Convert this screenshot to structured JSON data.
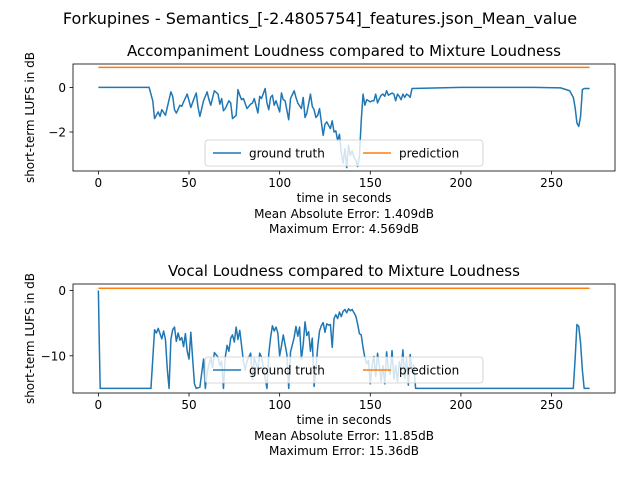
{
  "figure": {
    "suptitle": "Forkupines - Semantics_[-2.4805754]_features.json_Mean_value"
  },
  "colors": {
    "ground_truth": "#1f77b4",
    "prediction": "#ff7f0e"
  },
  "chart_data": [
    {
      "type": "line",
      "title": "Accompaniment Loudness compared to Mixture Loudness",
      "xlabel": "time in seconds",
      "ylabel": "short-term LUFS in dB",
      "xlim": [
        -14,
        285
      ],
      "ylim": [
        -3.75,
        1.05
      ],
      "xticks": [
        0,
        50,
        100,
        150,
        200,
        250
      ],
      "yticks": [
        -2,
        0
      ],
      "legend": {
        "placement": "lower center",
        "columns": 2
      },
      "grid": false,
      "stats": [
        "Mean Absolute Error: 1.409dB",
        "Maximum Error: 4.569dB"
      ],
      "series": [
        {
          "name": "ground truth",
          "color": "#1f77b4",
          "x": [
            0,
            28,
            30,
            31,
            33,
            34,
            35,
            37,
            38,
            40,
            41,
            42,
            43,
            45,
            46,
            47,
            49,
            51,
            53,
            54,
            55,
            56,
            58,
            60,
            61,
            62,
            64,
            66,
            67,
            68,
            69,
            70,
            72,
            73,
            74,
            76,
            77,
            78,
            79,
            80,
            82,
            84,
            85,
            86,
            88,
            89,
            90,
            92,
            93,
            94,
            95,
            96,
            97,
            98,
            100,
            101,
            102,
            103,
            105,
            106,
            108,
            109,
            110,
            112,
            113,
            114,
            115,
            117,
            118,
            119,
            120,
            121,
            122,
            124,
            125,
            126,
            127,
            128,
            129,
            130,
            131,
            132,
            133,
            134,
            135,
            136,
            137,
            138,
            139,
            140,
            141,
            142,
            143,
            144,
            145,
            146,
            147,
            148,
            150,
            151,
            152,
            153,
            154,
            155,
            156,
            157,
            158,
            159,
            160,
            161,
            162,
            163,
            164,
            165,
            166,
            167,
            168,
            169,
            170,
            171,
            172,
            173,
            200,
            240,
            255,
            260,
            262,
            263,
            264,
            265,
            266,
            267,
            268,
            270,
            271
          ],
          "values": [
            0,
            0,
            -0.6,
            -1.4,
            -1.1,
            -1.3,
            -1.0,
            -1.25,
            -0.9,
            -0.2,
            -0.4,
            -1.0,
            -1.15,
            -0.8,
            -0.85,
            -0.65,
            -0.3,
            -0.9,
            -0.45,
            -0.25,
            -0.9,
            -1.3,
            -0.6,
            -0.2,
            -0.55,
            -0.8,
            -0.15,
            -0.3,
            -0.75,
            -0.5,
            -1.05,
            -0.95,
            -0.6,
            -0.7,
            -1.4,
            -1.25,
            -0.1,
            -0.35,
            -0.55,
            -0.5,
            -0.95,
            -0.75,
            -0.7,
            -0.5,
            -1.15,
            -0.4,
            -0.5,
            -0.05,
            -0.7,
            -1.0,
            -0.45,
            -0.35,
            -0.8,
            -0.6,
            -1.1,
            -0.25,
            -0.55,
            -0.6,
            -1.45,
            -0.5,
            -0.15,
            -0.45,
            -0.7,
            -0.95,
            -0.45,
            -1.35,
            -1.15,
            -0.3,
            -0.85,
            -1.0,
            -1.35,
            -1.25,
            -0.95,
            -2.15,
            -1.65,
            -1.55,
            -1.7,
            -1.85,
            -1.5,
            -2.0,
            -1.95,
            -2.4,
            -2.1,
            -2.95,
            -3.4,
            -2.75,
            -3.6,
            -2.6,
            -3.05,
            -2.85,
            -3.15,
            -3.25,
            -3.55,
            -3.1,
            -1.5,
            -0.3,
            -0.8,
            -0.55,
            -0.65,
            -0.6,
            -0.6,
            -0.3,
            -0.7,
            -0.5,
            -0.35,
            -0.3,
            -0.4,
            -0.15,
            -0.35,
            -0.3,
            -0.25,
            -0.3,
            -0.6,
            -0.3,
            -0.4,
            -0.55,
            -0.3,
            -0.45,
            -0.3,
            -0.35,
            -0.45,
            -0.05,
            0,
            0,
            -0.02,
            -0.15,
            -0.45,
            -0.9,
            -1.6,
            -1.75,
            -1.3,
            -0.1,
            -0.05,
            -0.05,
            -0.05
          ]
        },
        {
          "name": "prediction",
          "color": "#ff7f0e",
          "x": [
            0,
            271
          ],
          "values": [
            0.9,
            0.9
          ]
        }
      ]
    },
    {
      "type": "line",
      "title": "Vocal Loudness compared to Mixture Loudness",
      "xlabel": "time in seconds",
      "ylabel": "short-term LUFS in dB",
      "xlim": [
        -14,
        285
      ],
      "ylim": [
        -15.7,
        1.0
      ],
      "xticks": [
        0,
        50,
        100,
        150,
        200,
        250
      ],
      "yticks": [
        -10,
        0
      ],
      "legend": {
        "placement": "lower center",
        "columns": 2
      },
      "grid": false,
      "stats": [
        "Mean Absolute Error: 11.85dB",
        "Maximum Error: 15.36dB"
      ],
      "series": [
        {
          "name": "ground truth",
          "color": "#1f77b4",
          "x": [
            0,
            0.5,
            1,
            28,
            29,
            30,
            31,
            32,
            33,
            35,
            36,
            37,
            38,
            39,
            40,
            41,
            42,
            43,
            44,
            45,
            46,
            47,
            48,
            49,
            50,
            51,
            52,
            53,
            54,
            56,
            58,
            59,
            60,
            62,
            63,
            64,
            66,
            67,
            68,
            69,
            70,
            71,
            72,
            73,
            74,
            75,
            76,
            77,
            78,
            80,
            81,
            82,
            84,
            85,
            86,
            88,
            89,
            90,
            92,
            93,
            94,
            95,
            96,
            97,
            98,
            99,
            100,
            101,
            102,
            104,
            105,
            106,
            108,
            109,
            110,
            111,
            112,
            113,
            114,
            115,
            116,
            117,
            118,
            119,
            120,
            121,
            122,
            123,
            124,
            125,
            126,
            127,
            128,
            129,
            130,
            131,
            132,
            133,
            134,
            135,
            136,
            137,
            138,
            139,
            140,
            141,
            142,
            143,
            144,
            145,
            146,
            147,
            148,
            149,
            150,
            151,
            152,
            153,
            154,
            155,
            156,
            157,
            158,
            159,
            160,
            161,
            162,
            163,
            164,
            165,
            166,
            167,
            168,
            169,
            170,
            171,
            172,
            173,
            174,
            175,
            262,
            263,
            264,
            265,
            266,
            267,
            268,
            270,
            271
          ],
          "values": [
            0,
            -8,
            -15,
            -15,
            -15,
            -10.5,
            -6,
            -6.5,
            -5.8,
            -7.4,
            -6.2,
            -7.5,
            -12,
            -15,
            -7.5,
            -6,
            -5.6,
            -7.8,
            -6.5,
            -7.6,
            -7.2,
            -8.6,
            -6.6,
            -9.3,
            -10.5,
            -6.4,
            -10.4,
            -14.3,
            -15,
            -14.8,
            -10.5,
            -15,
            -12.5,
            -10.3,
            -11.8,
            -9.5,
            -10.2,
            -11.5,
            -10.8,
            -15,
            -10.2,
            -8.4,
            -9.3,
            -7.3,
            -6.8,
            -7.9,
            -5.6,
            -7.5,
            -6.1,
            -10.8,
            -12.2,
            -10.8,
            -9.6,
            -13.6,
            -10.3,
            -12.1,
            -9.6,
            -10.2,
            -13.4,
            -15,
            -9.7,
            -7.2,
            -5.4,
            -6.2,
            -5.6,
            -6.5,
            -10,
            -8.5,
            -6.8,
            -9.8,
            -15,
            -9.4,
            -7.2,
            -5.5,
            -7,
            -5.6,
            -10.5,
            -8.3,
            -4.8,
            -6.9,
            -6.3,
            -9.3,
            -7.3,
            -14.7,
            -12,
            -8.6,
            -6.2,
            -5.4,
            -4.9,
            -6.4,
            -5.1,
            -5.3,
            -5.2,
            -8.7,
            -4.3,
            -3.7,
            -4.3,
            -3.3,
            -4.0,
            -3.2,
            -2.9,
            -3.4,
            -2.8,
            -3.1,
            -2.9,
            -3.4,
            -3.9,
            -5.1,
            -6.6,
            -6.8,
            -8.7,
            -10.3,
            -11.2,
            -10.7,
            -14.3,
            -11.5,
            -10.1,
            -13.2,
            -9.6,
            -11.5,
            -13.9,
            -11.5,
            -14.3,
            -9.4,
            -12.1,
            -12.8,
            -9.2,
            -13.6,
            -11.5,
            -14,
            -10.9,
            -12.1,
            -9.1,
            -13.5,
            -10.4,
            -14.5,
            -9.8,
            -12.5,
            -11.4,
            -15,
            -15,
            -10.5,
            -5.2,
            -5.5,
            -8,
            -12.2,
            -15,
            -15,
            -15
          ]
        },
        {
          "name": "prediction",
          "color": "#ff7f0e",
          "x": [
            0,
            271
          ],
          "values": [
            0.35,
            0.35
          ]
        }
      ]
    }
  ]
}
